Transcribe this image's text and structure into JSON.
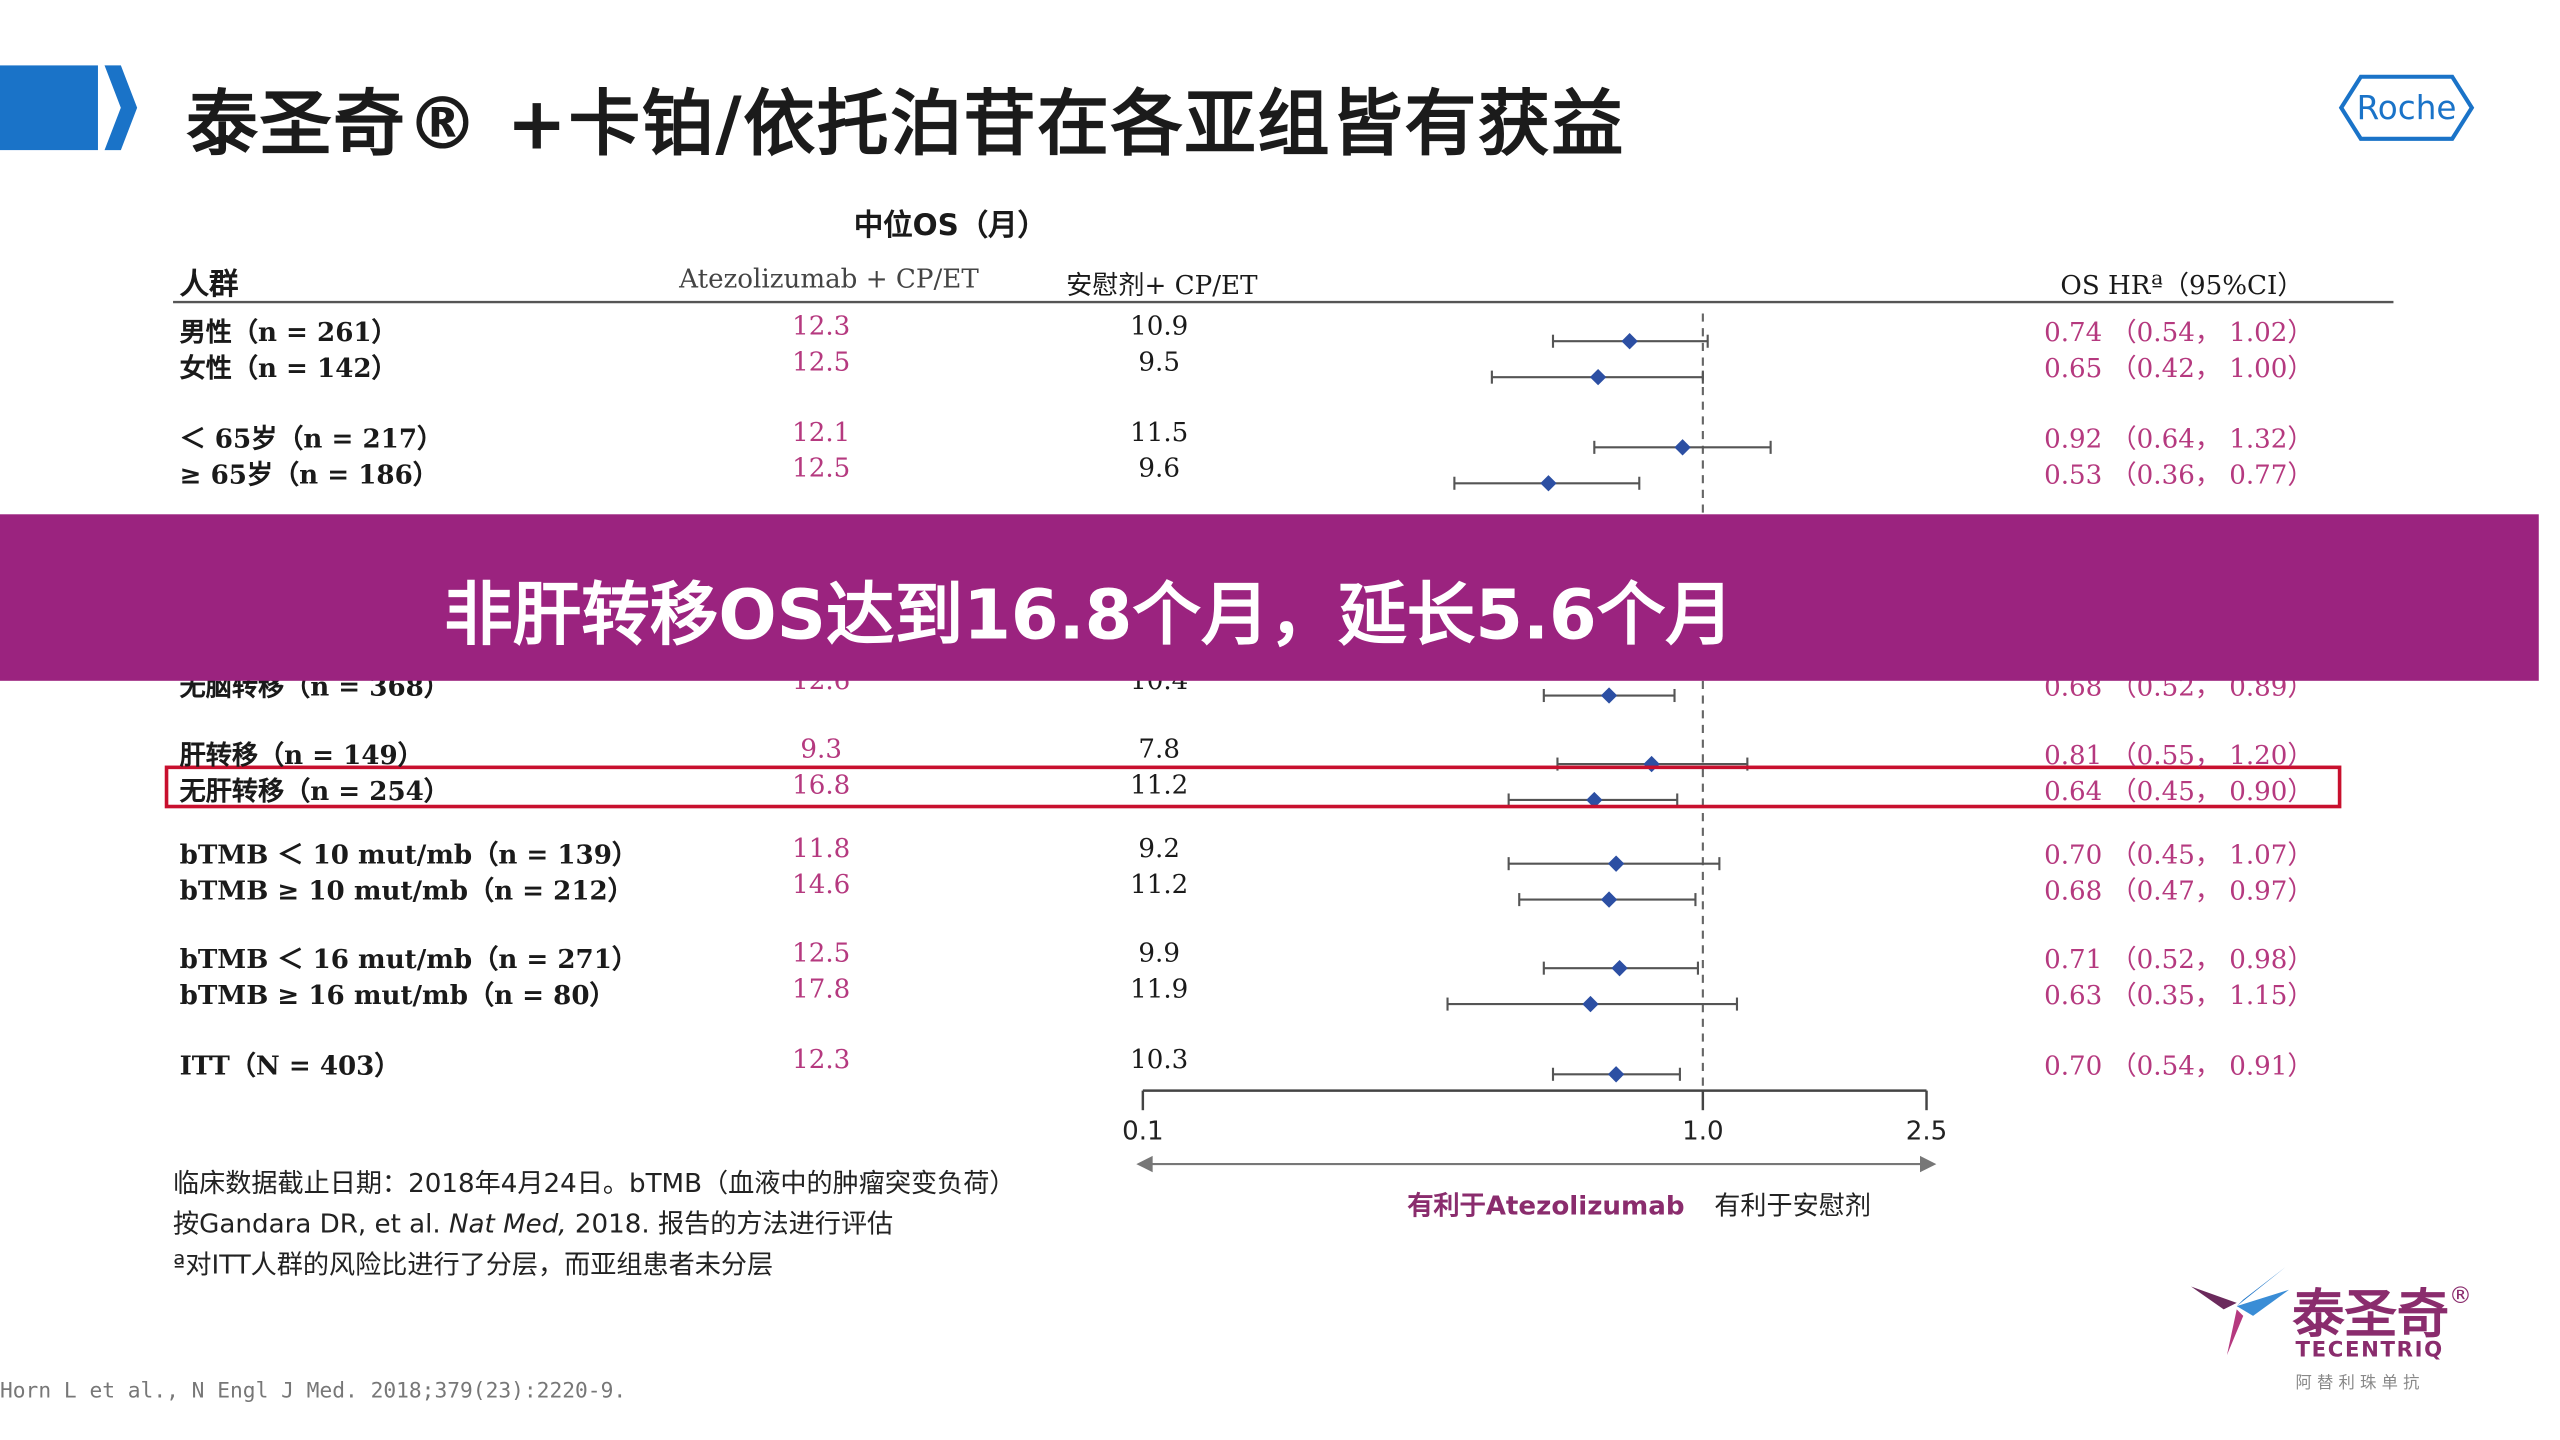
{
  "title": "泰圣奇® +卡铂/依托泊苷在各亚组皆有获益",
  "header": {
    "median_os": "中位OS（月）",
    "population": "人群",
    "col_atezo": "Atezolizumab + CP/ET",
    "col_placebo": "安慰剂+ CP/ET",
    "col_hr": "OS HRª（95%CI）"
  },
  "banner": {
    "text": "非肝转移OS达到16.8个月，延长5.6个月"
  },
  "chart_data": {
    "type": "forest",
    "x_axis": {
      "scale": "log",
      "ticks": [
        0.1,
        1.0,
        2.5
      ],
      "tick_labels": [
        "0.1",
        "1.0",
        "2.5"
      ],
      "reference_line": 1.0
    },
    "favors_left": "有利于Atezolizumab",
    "favors_right": "有利于安慰剂",
    "rows": [
      {
        "label": "男性（n = 261）",
        "atezo": "12.3",
        "placebo": "10.9",
        "hr_text": "0.74 （0.54， 1.02）",
        "hr": 0.74,
        "lo": 0.54,
        "hi": 1.02,
        "group": 0
      },
      {
        "label": "女性（n = 142）",
        "atezo": "12.5",
        "placebo": "9.5",
        "hr_text": "0.65 （0.42， 1.00）",
        "hr": 0.65,
        "lo": 0.42,
        "hi": 1.0,
        "group": 0
      },
      {
        "label": "＜ 65岁（n = 217）",
        "atezo": "12.1",
        "placebo": "11.5",
        "hr_text": "0.92 （0.64， 1.32）",
        "hr": 0.92,
        "lo": 0.64,
        "hi": 1.32,
        "group": 1
      },
      {
        "label": "≥ 65岁（n = 186）",
        "atezo": "12.5",
        "placebo": "9.6",
        "hr_text": "0.53 （0.36， 0.77）",
        "hr": 0.53,
        "lo": 0.36,
        "hi": 0.77,
        "group": 1
      },
      {
        "label": "肝转移（n = 149）",
        "atezo": "9.3",
        "placebo": "7.8",
        "hr_text": "0.81 （0.55， 1.20）",
        "hr": 0.81,
        "lo": 0.55,
        "hi": 1.2,
        "group": 3
      },
      {
        "label": "无肝转移（n = 254）",
        "atezo": "16.8",
        "placebo": "11.2",
        "hr_text": "0.64 （0.45， 0.90）",
        "hr": 0.64,
        "lo": 0.45,
        "hi": 0.9,
        "group": 3,
        "highlight": true
      },
      {
        "label": "bTMB ＜ 10 mut/mb（n = 139）",
        "atezo": "11.8",
        "placebo": "9.2",
        "hr_text": "0.70 （0.45， 1.07）",
        "hr": 0.7,
        "lo": 0.45,
        "hi": 1.07,
        "group": 4
      },
      {
        "label": "bTMB ≥ 10 mut/mb（n = 212）",
        "atezo": "14.6",
        "placebo": "11.2",
        "hr_text": "0.68 （0.47， 0.97）",
        "hr": 0.68,
        "lo": 0.47,
        "hi": 0.97,
        "group": 4
      },
      {
        "label": "bTMB ＜ 16 mut/mb（n = 271）",
        "atezo": "12.5",
        "placebo": "9.9",
        "hr_text": "0.71 （0.52， 0.98）",
        "hr": 0.71,
        "lo": 0.52,
        "hi": 0.98,
        "group": 5
      },
      {
        "label": "bTMB ≥ 16 mut/mb（n = 80）",
        "atezo": "17.8",
        "placebo": "11.9",
        "hr_text": "0.63 （0.35， 1.15）",
        "hr": 0.63,
        "lo": 0.35,
        "hi": 1.15,
        "group": 5
      },
      {
        "label": "ITT（N = 403）",
        "atezo": "12.3",
        "placebo": "10.3",
        "hr_text": "0.70 （0.54， 0.91）",
        "hr": 0.7,
        "lo": 0.54,
        "hi": 0.91,
        "group": 6
      }
    ],
    "partially_hidden_row": {
      "label": "无脑转移（n = 368）",
      "atezo": "12.6",
      "placebo": "10.4",
      "hr_text": "0.68 （0.52， 0.89）",
      "hr": 0.68,
      "lo": 0.52,
      "hi": 0.89
    }
  },
  "footnotes": {
    "line1": "临床数据截止日期：2018年4月24日。bTMB（血液中的肿瘤突变负荷）",
    "line2_pre": "按Gandara DR, et al. ",
    "line2_italic": "Nat Med,",
    "line2_post": " 2018. 报告的方法进行评估",
    "line3": "ª对ITT人群的风险比进行了分层，而亚组患者未分层"
  },
  "citation": "Horn L et al., N Engl J Med. 2018;379(23):2220-9.",
  "logos": {
    "roche": "Roche",
    "brand_cn": "泰圣奇",
    "brand_reg": "®",
    "brand_en": "TECENTRIQ",
    "brand_sub": "阿 替 利 珠 单 抗"
  },
  "colors": {
    "accent_blue": "#1a73c8",
    "banner_purple": "#9b237f",
    "value_red": "#b5397f",
    "marker_blue": "#2c4fa3",
    "highlight_red": "#c8102e"
  }
}
